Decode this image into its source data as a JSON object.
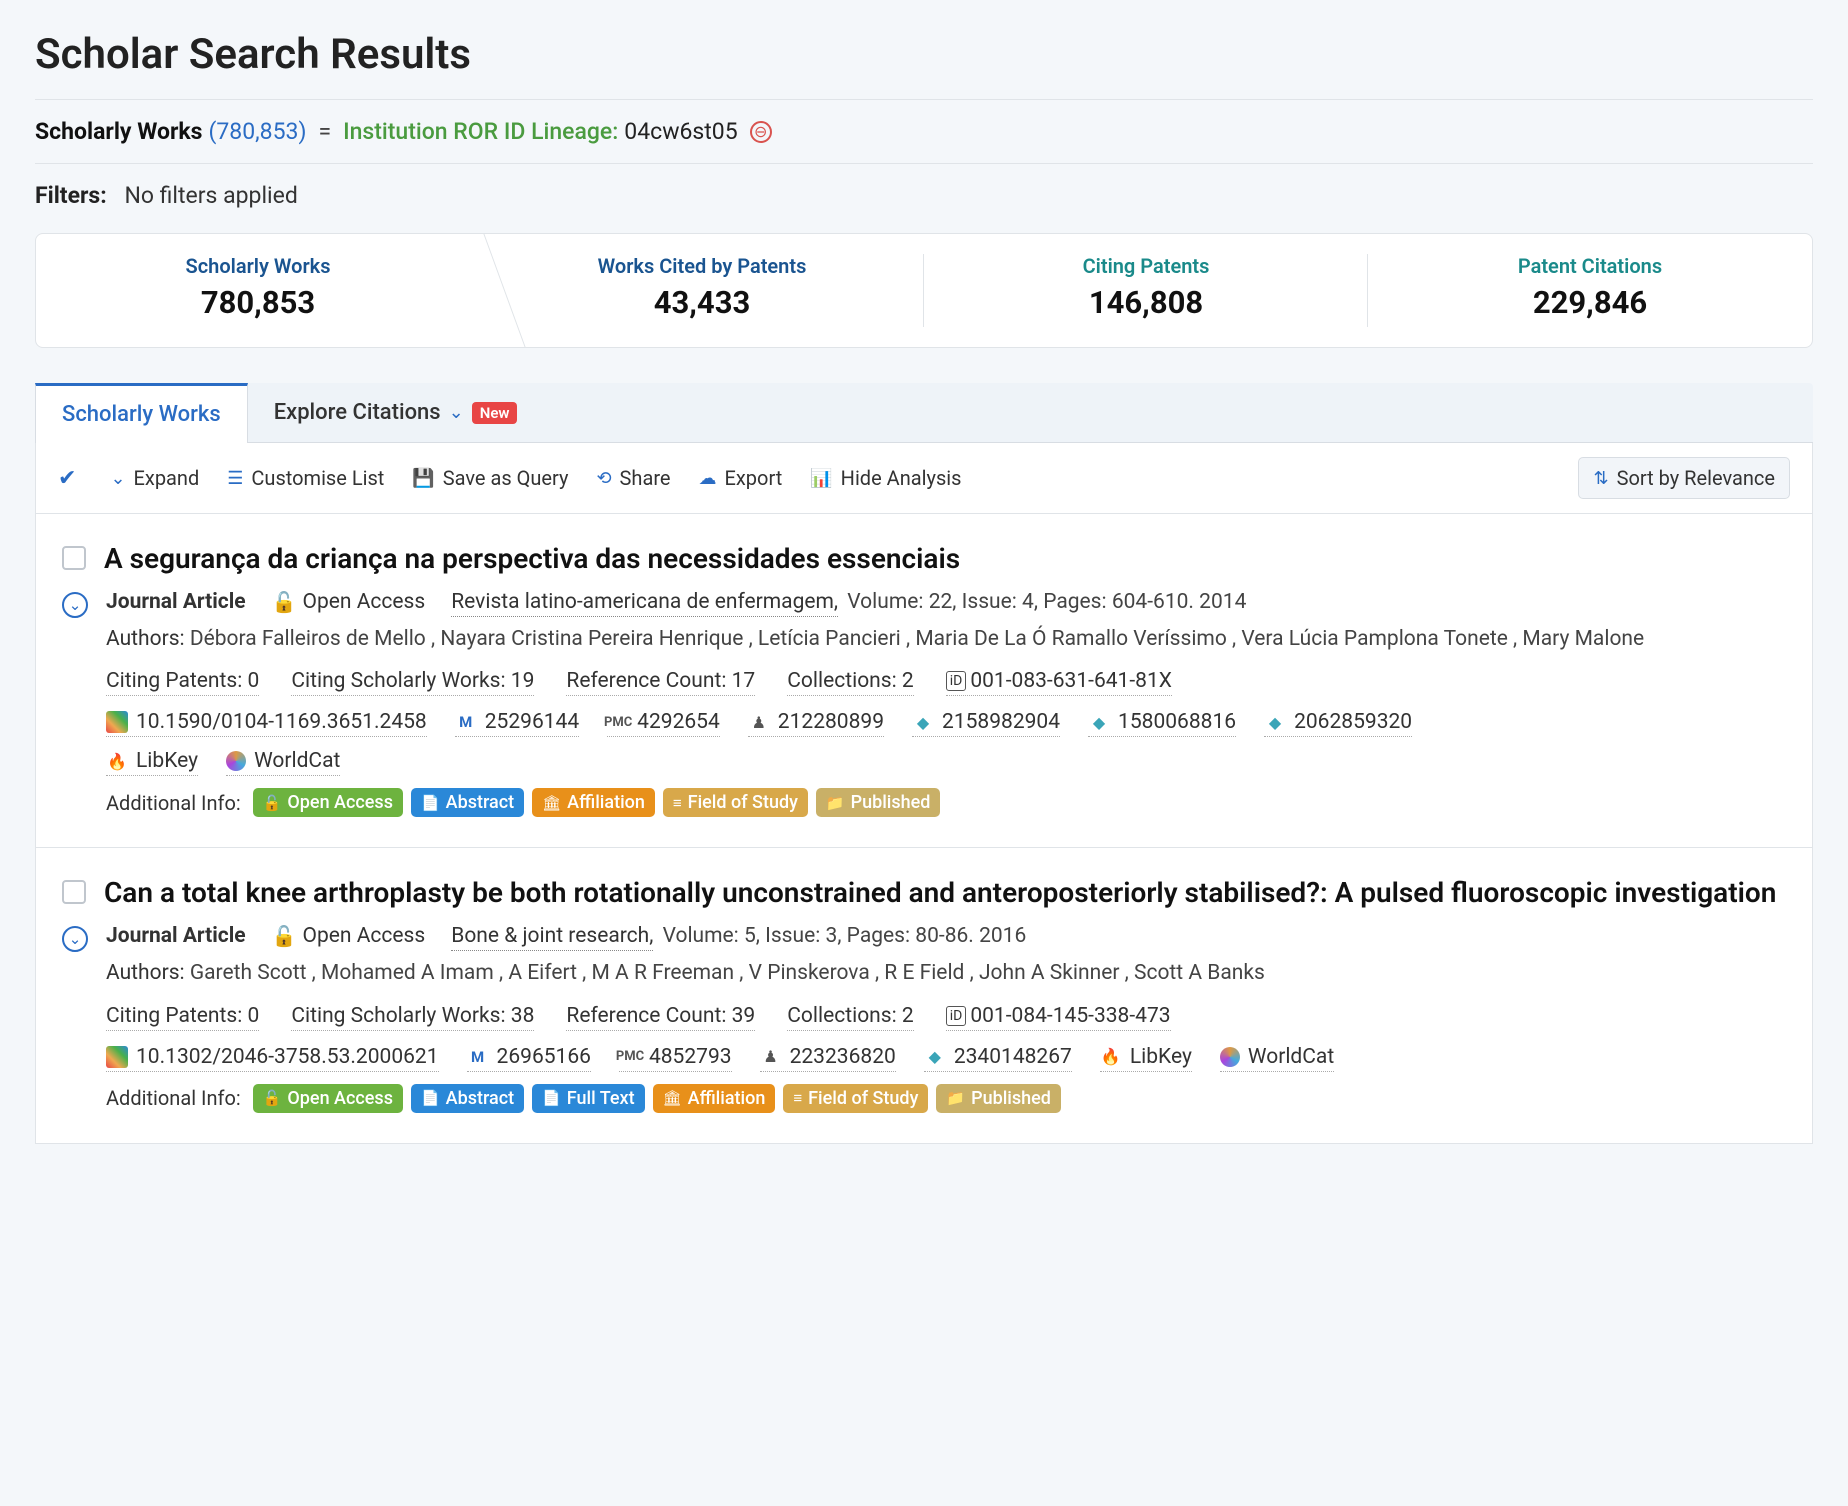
{
  "page": {
    "title": "Scholar Search Results"
  },
  "query": {
    "label": "Scholarly Works",
    "count": "(780,853)",
    "eq": "=",
    "field": "Institution ROR ID Lineage:",
    "value": "04cw6st05"
  },
  "filters": {
    "label": "Filters:",
    "value": "No filters applied"
  },
  "stats": [
    {
      "label": "Scholarly Works",
      "value": "780,853",
      "color": "blue",
      "active": true
    },
    {
      "label": "Works Cited by Patents",
      "value": "43,433",
      "color": "blue",
      "active": false
    },
    {
      "label": "Citing Patents",
      "value": "146,808",
      "color": "teal",
      "active": false
    },
    {
      "label": "Patent Citations",
      "value": "229,846",
      "color": "teal",
      "active": false
    }
  ],
  "tabs": {
    "scholarly": "Scholarly Works",
    "explore": "Explore Citations",
    "new_badge": "New"
  },
  "toolbar": {
    "expand": "Expand",
    "customise": "Customise List",
    "save_query": "Save as Query",
    "share": "Share",
    "export": "Export",
    "hide_analysis": "Hide Analysis",
    "sort": "Sort by Relevance"
  },
  "results": [
    {
      "title": "A segurança da criança na perspectiva das necessidades essenciais",
      "type": "Journal Article",
      "open_access": "Open Access",
      "journal": "Revista latino-americana de enfermagem",
      "volume": "Volume: 22,",
      "issue": "Issue: 4,",
      "pages": "Pages: 604-610.",
      "year": "2014",
      "authors_label": "Authors:",
      "authors": "Débora Falleiros de Mello , Nayara Cristina Pereira Henrique , Letícia Pancieri , Maria De La Ó Ramallo Veríssimo , Vera Lúcia Pamplona Tonete , Mary Malone",
      "citing_patents": "Citing Patents: 0",
      "citing_works": "Citing Scholarly Works: 19",
      "ref_count": "Reference Count: 17",
      "collections": "Collections: 2",
      "orcid": "001-083-631-641-81X",
      "ids_a": [
        {
          "ico": "lens",
          "val": "10.1590/0104-1169.3651.2458"
        },
        {
          "ico": "m",
          "val": "25296144"
        },
        {
          "ico": "pmc",
          "val": "4292654"
        },
        {
          "ico": "mag",
          "val": "212280899"
        },
        {
          "ico": "sem",
          "val": "2158982904"
        },
        {
          "ico": "sem",
          "val": "1580068816"
        },
        {
          "ico": "sem",
          "val": "2062859320"
        }
      ],
      "ids_b": [
        {
          "ico": "fire",
          "val": "LibKey"
        },
        {
          "ico": "swirl",
          "val": "WorldCat"
        }
      ],
      "tags_label": "Additional Info:",
      "tags": [
        {
          "cls": "tag-green",
          "ico": "🔓",
          "label": "Open Access"
        },
        {
          "cls": "tag-blue",
          "ico": "📄",
          "label": "Abstract"
        },
        {
          "cls": "tag-orange",
          "ico": "🏛",
          "label": "Affiliation"
        },
        {
          "cls": "tag-amber",
          "ico": "≡",
          "label": "Field of Study"
        },
        {
          "cls": "tag-tan",
          "ico": "📁",
          "label": "Published"
        }
      ]
    },
    {
      "title": "Can a total knee arthroplasty be both rotationally unconstrained and anteroposteriorly stabilised?: A pulsed fluoroscopic investigation",
      "type": "Journal Article",
      "open_access": "Open Access",
      "journal": "Bone & joint research",
      "volume": "Volume: 5,",
      "issue": "Issue: 3,",
      "pages": "Pages: 80-86.",
      "year": "2016",
      "authors_label": "Authors:",
      "authors": "Gareth Scott , Mohamed A Imam , A Eifert , M A R Freeman , V Pinskerova , R E Field , John A Skinner , Scott A Banks",
      "citing_patents": "Citing Patents: 0",
      "citing_works": "Citing Scholarly Works: 38",
      "ref_count": "Reference Count: 39",
      "collections": "Collections: 2",
      "orcid": "001-084-145-338-473",
      "ids_a": [
        {
          "ico": "lens",
          "val": "10.1302/2046-3758.53.2000621"
        },
        {
          "ico": "m",
          "val": "26965166"
        },
        {
          "ico": "pmc",
          "val": "4852793"
        },
        {
          "ico": "mag",
          "val": "223236820"
        },
        {
          "ico": "sem",
          "val": "2340148267"
        },
        {
          "ico": "fire",
          "val": "LibKey"
        },
        {
          "ico": "swirl",
          "val": "WorldCat"
        }
      ],
      "ids_b": [],
      "tags_label": "Additional Info:",
      "tags": [
        {
          "cls": "tag-green",
          "ico": "🔓",
          "label": "Open Access"
        },
        {
          "cls": "tag-blue",
          "ico": "📄",
          "label": "Abstract"
        },
        {
          "cls": "tag-blue",
          "ico": "📄",
          "label": "Full Text"
        },
        {
          "cls": "tag-orange",
          "ico": "🏛",
          "label": "Affiliation"
        },
        {
          "cls": "tag-amber",
          "ico": "≡",
          "label": "Field of Study"
        },
        {
          "cls": "tag-tan",
          "ico": "📁",
          "label": "Published"
        }
      ]
    }
  ]
}
